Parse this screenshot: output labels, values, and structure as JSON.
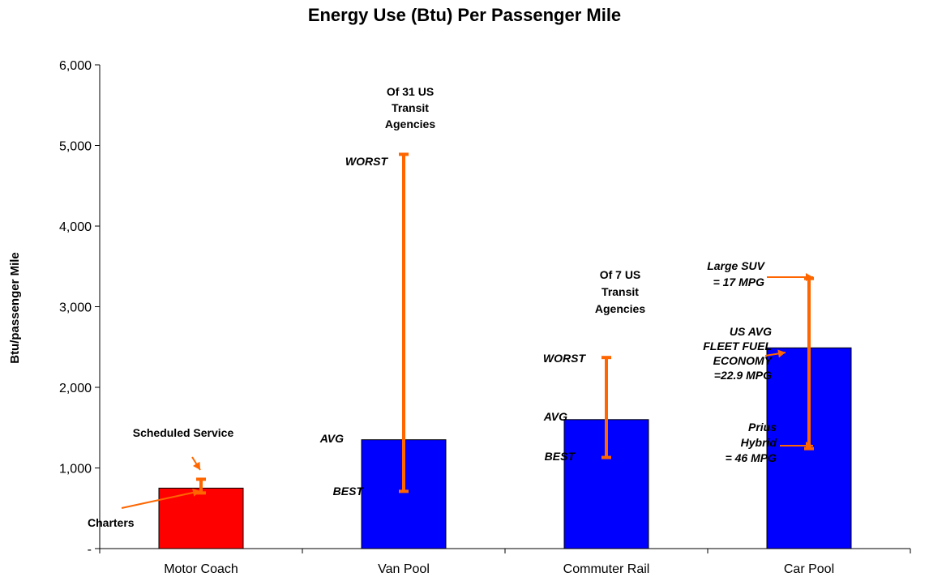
{
  "chart_data": {
    "type": "bar",
    "title": "Energy Use (Btu) Per Passenger Mile",
    "xlabel": "",
    "ylabel": "Btu/passenger Mile",
    "ylim": [
      0,
      6000
    ],
    "yticks": [
      0,
      1000,
      2000,
      3000,
      4000,
      5000,
      6000
    ],
    "ytick_labels": [
      "-",
      "1,000",
      "2,000",
      "3,000",
      "4,000",
      "5,000",
      "6,000"
    ],
    "grid": false,
    "legend": "none",
    "categories": [
      "Motor Coach",
      "Van Pool",
      "Commuter Rail",
      "Car Pool"
    ],
    "values": [
      750,
      1350,
      1600,
      2490
    ],
    "bar_colors": [
      "#ff0000",
      "#0000ff",
      "#0000ff",
      "#0000ff"
    ],
    "range_color": "#ff6600",
    "ranges": [
      {
        "category": "Motor Coach",
        "low": 690,
        "high": 860
      },
      {
        "category": "Van Pool",
        "low": 710,
        "high": 4890
      },
      {
        "category": "Commuter Rail",
        "low": 1130,
        "high": 2370
      },
      {
        "category": "Car Pool",
        "low": 1240,
        "high": 3350
      }
    ],
    "annotations": [
      {
        "text": "Scheduled Service",
        "style": "bold",
        "category": "Motor Coach"
      },
      {
        "text": "Charters",
        "style": "bold",
        "category": "Motor Coach"
      },
      {
        "lines": [
          "Of 31 US",
          "Transit",
          "Agencies"
        ],
        "style": "bold",
        "category": "Van Pool"
      },
      {
        "text": "WORST",
        "style": "bold-italic",
        "category": "Van Pool"
      },
      {
        "text": "AVG",
        "style": "bold-italic",
        "category": "Van Pool"
      },
      {
        "text": "BEST",
        "style": "bold-italic",
        "category": "Van Pool"
      },
      {
        "lines": [
          "Of 7 US",
          "Transit",
          "Agencies"
        ],
        "style": "bold",
        "category": "Commuter Rail"
      },
      {
        "text": "WORST",
        "style": "bold-italic",
        "category": "Commuter Rail"
      },
      {
        "text": "AVG",
        "style": "bold-italic",
        "category": "Commuter Rail"
      },
      {
        "text": "BEST",
        "style": "bold-italic",
        "category": "Commuter Rail"
      },
      {
        "lines": [
          "Large SUV",
          "= 17 MPG"
        ],
        "style": "bold-italic",
        "category": "Car Pool"
      },
      {
        "lines": [
          "US AVG",
          "FLEET FUEL",
          "ECONOMY",
          "=22.9 MPG"
        ],
        "style": "bold-italic",
        "category": "Car Pool"
      },
      {
        "lines": [
          "Prius",
          "Hybrid",
          "= 46 MPG"
        ],
        "style": "bold-italic",
        "category": "Car Pool"
      }
    ]
  }
}
